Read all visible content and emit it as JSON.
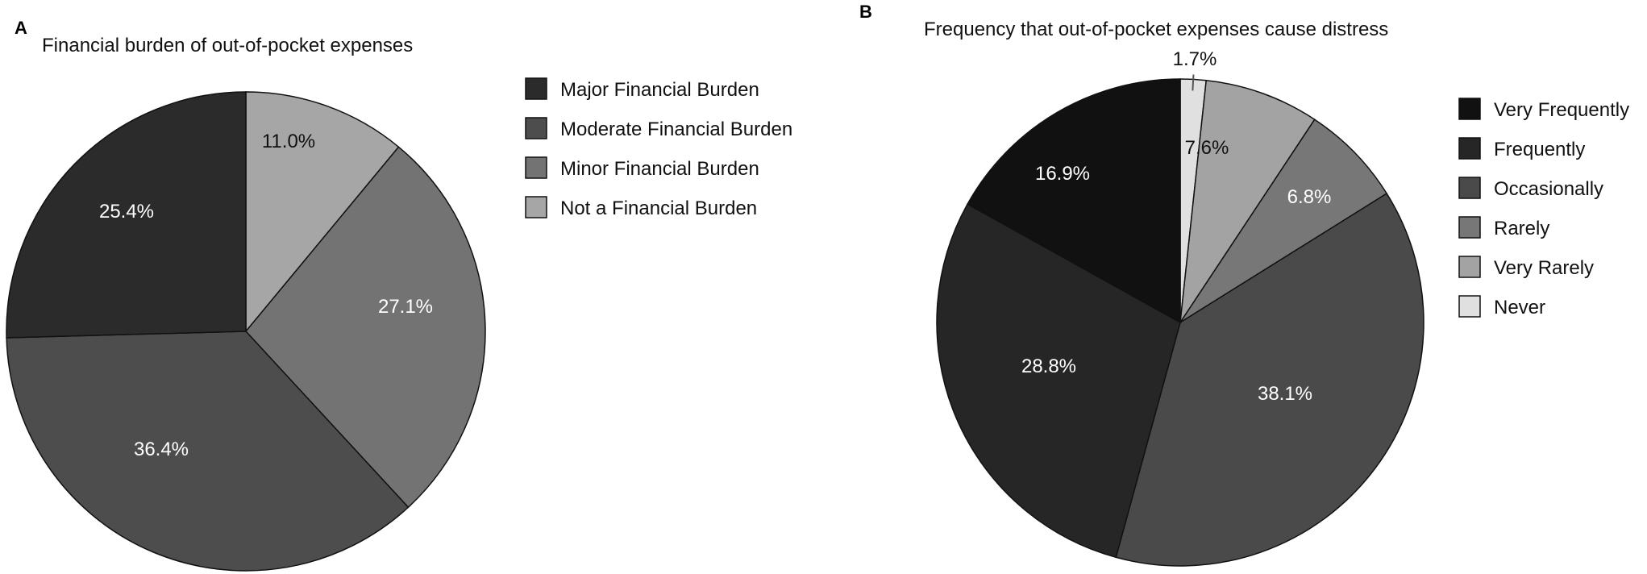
{
  "chart_data": [
    {
      "type": "pie",
      "panel": "A",
      "title": "Financial burden of out-of-pocket expenses",
      "categories": [
        "Major Financial Burden",
        "Moderate Financial Burden",
        "Minor Financial Burden",
        "Not a Financial Burden"
      ],
      "values": [
        25.4,
        36.4,
        27.1,
        11.0
      ],
      "labels": [
        "25.4%",
        "36.4%",
        "27.1%",
        "11.0%"
      ],
      "colors": [
        "#2b2b2b",
        "#4d4d4d",
        "#737373",
        "#a6a6a6"
      ],
      "label_colors": [
        "#ffffff",
        "#ffffff",
        "#ffffff",
        "#111111"
      ],
      "legend_position": "right"
    },
    {
      "type": "pie",
      "panel": "B",
      "title": "Frequency that out-of-pocket expenses cause distress",
      "categories": [
        "Very Frequently",
        "Frequently",
        "Occasionally",
        "Rarely",
        "Very Rarely",
        "Never"
      ],
      "values": [
        16.9,
        28.8,
        38.1,
        6.8,
        7.6,
        1.7
      ],
      "labels": [
        "16.9%",
        "28.8%",
        "38.1%",
        "6.8%",
        "7.6%",
        "1.7%"
      ],
      "colors": [
        "#111111",
        "#262626",
        "#4a4a4a",
        "#777777",
        "#a3a3a3",
        "#e0e0e0"
      ],
      "label_colors": [
        "#ffffff",
        "#ffffff",
        "#ffffff",
        "#ffffff",
        "#111111",
        "#111111"
      ],
      "legend_position": "right"
    }
  ]
}
